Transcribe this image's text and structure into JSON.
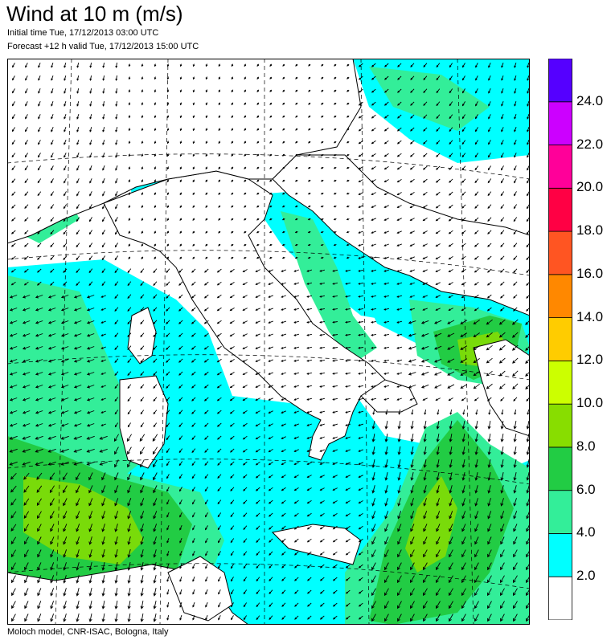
{
  "title": "Wind at 10 m (m/s)",
  "initial_time": "Initial time  Tue, 17/12/2013 03:00 UTC",
  "forecast": "Forecast +12 h valid  Tue, 17/12/2013 15:00 UTC",
  "footer": "Moloch model, CNR-ISAC, Bologna, Italy",
  "legend": {
    "labels": [
      "2.0",
      "4.0",
      "6.0",
      "8.0",
      "10.0",
      "12.0",
      "14.0",
      "16.0",
      "18.0",
      "20.0",
      "22.0",
      "24.0"
    ],
    "colors": [
      "#ffffff",
      "#00ffff",
      "#33ee99",
      "#22cc44",
      "#88dd00",
      "#ccff00",
      "#ffcc00",
      "#ff8800",
      "#ff5522",
      "#ff0044",
      "#ff0099",
      "#cc00ff",
      "#5500ff"
    ]
  },
  "map": {
    "land_color": "#ffffff",
    "wind_bands": {
      "calm": "#ffffff",
      "light": "#00ffff",
      "moderate": "#33ee99",
      "fresh": "#22cc44",
      "strong": "#88dd00"
    },
    "arrow_color": "#000000",
    "coastline_color": "#000000"
  }
}
